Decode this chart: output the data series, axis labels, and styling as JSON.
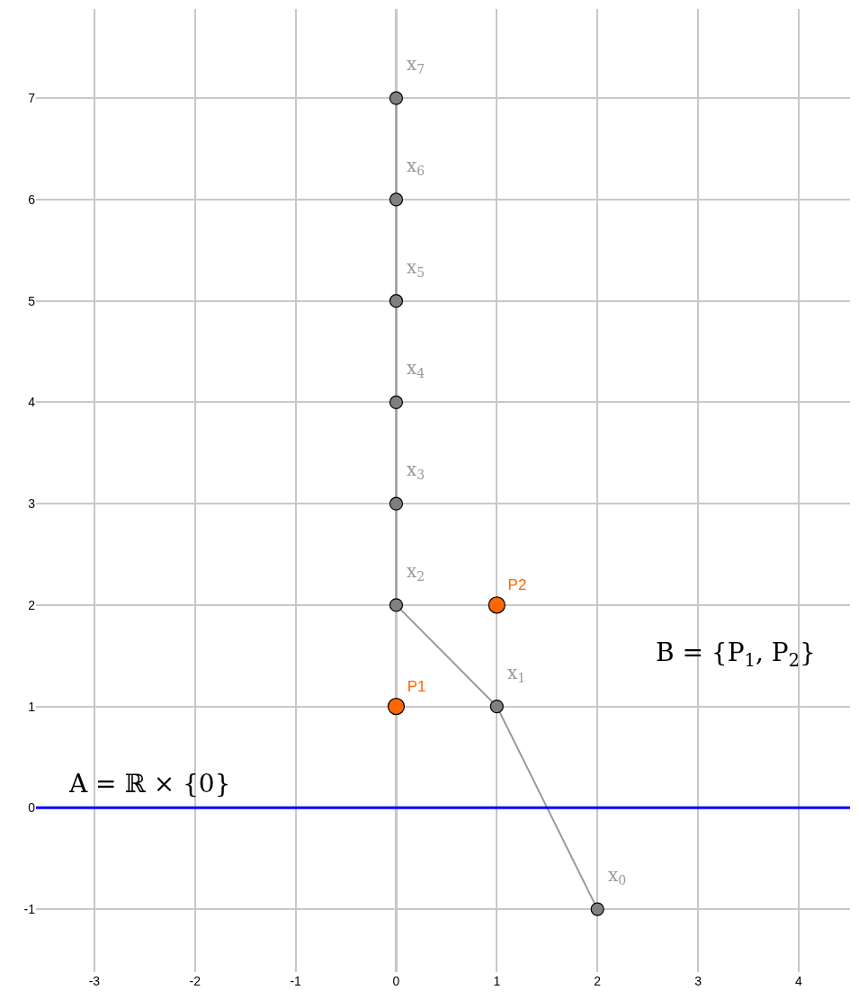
{
  "chart_data": {
    "type": "line",
    "xlim": [
      -3.58,
      4.51
    ],
    "ylim": [
      -1.62,
      7.88
    ],
    "xticks": [
      -3,
      -2,
      -1,
      0,
      1,
      2,
      3,
      4
    ],
    "yticks": [
      -1,
      0,
      1,
      2,
      3,
      4,
      5,
      6,
      7
    ],
    "grid": true,
    "legend": false,
    "marker": "circle",
    "series": [
      {
        "color": "#999999",
        "x": [
          2,
          1,
          0,
          0,
          0,
          0,
          0,
          0
        ],
        "values": [
          -1,
          1,
          2,
          3,
          4,
          5,
          6,
          7
        ]
      },
      {
        "type": "scatter",
        "color": "#ff6600",
        "x": [
          0,
          1
        ],
        "values": [
          1,
          2
        ],
        "value_labels": [
          "P1",
          "P2"
        ]
      }
    ],
    "ref_lines": [
      {
        "axis": "y",
        "value": 0,
        "color": "#0000ff",
        "label": "A = ℝ × {0}"
      }
    ],
    "annotations": [
      {
        "text": "x$_{0}$",
        "x": 2,
        "y": -1
      },
      {
        "text": "x$_{1}$",
        "x": 1,
        "y": 1
      },
      {
        "text": "x$_{2}$",
        "x": 0,
        "y": 2
      },
      {
        "text": "x$_{3}$",
        "x": 0,
        "y": 3
      },
      {
        "text": "x$_{4}$",
        "x": 0,
        "y": 4
      },
      {
        "text": "x$_{5}$",
        "x": 0,
        "y": 5
      },
      {
        "text": "x$_{6}$",
        "x": 0,
        "y": 6
      },
      {
        "text": "x$_{7}$",
        "x": 0,
        "y": 7
      },
      "B = {P$_{1}$, P$_{2}$}"
    ]
  }
}
